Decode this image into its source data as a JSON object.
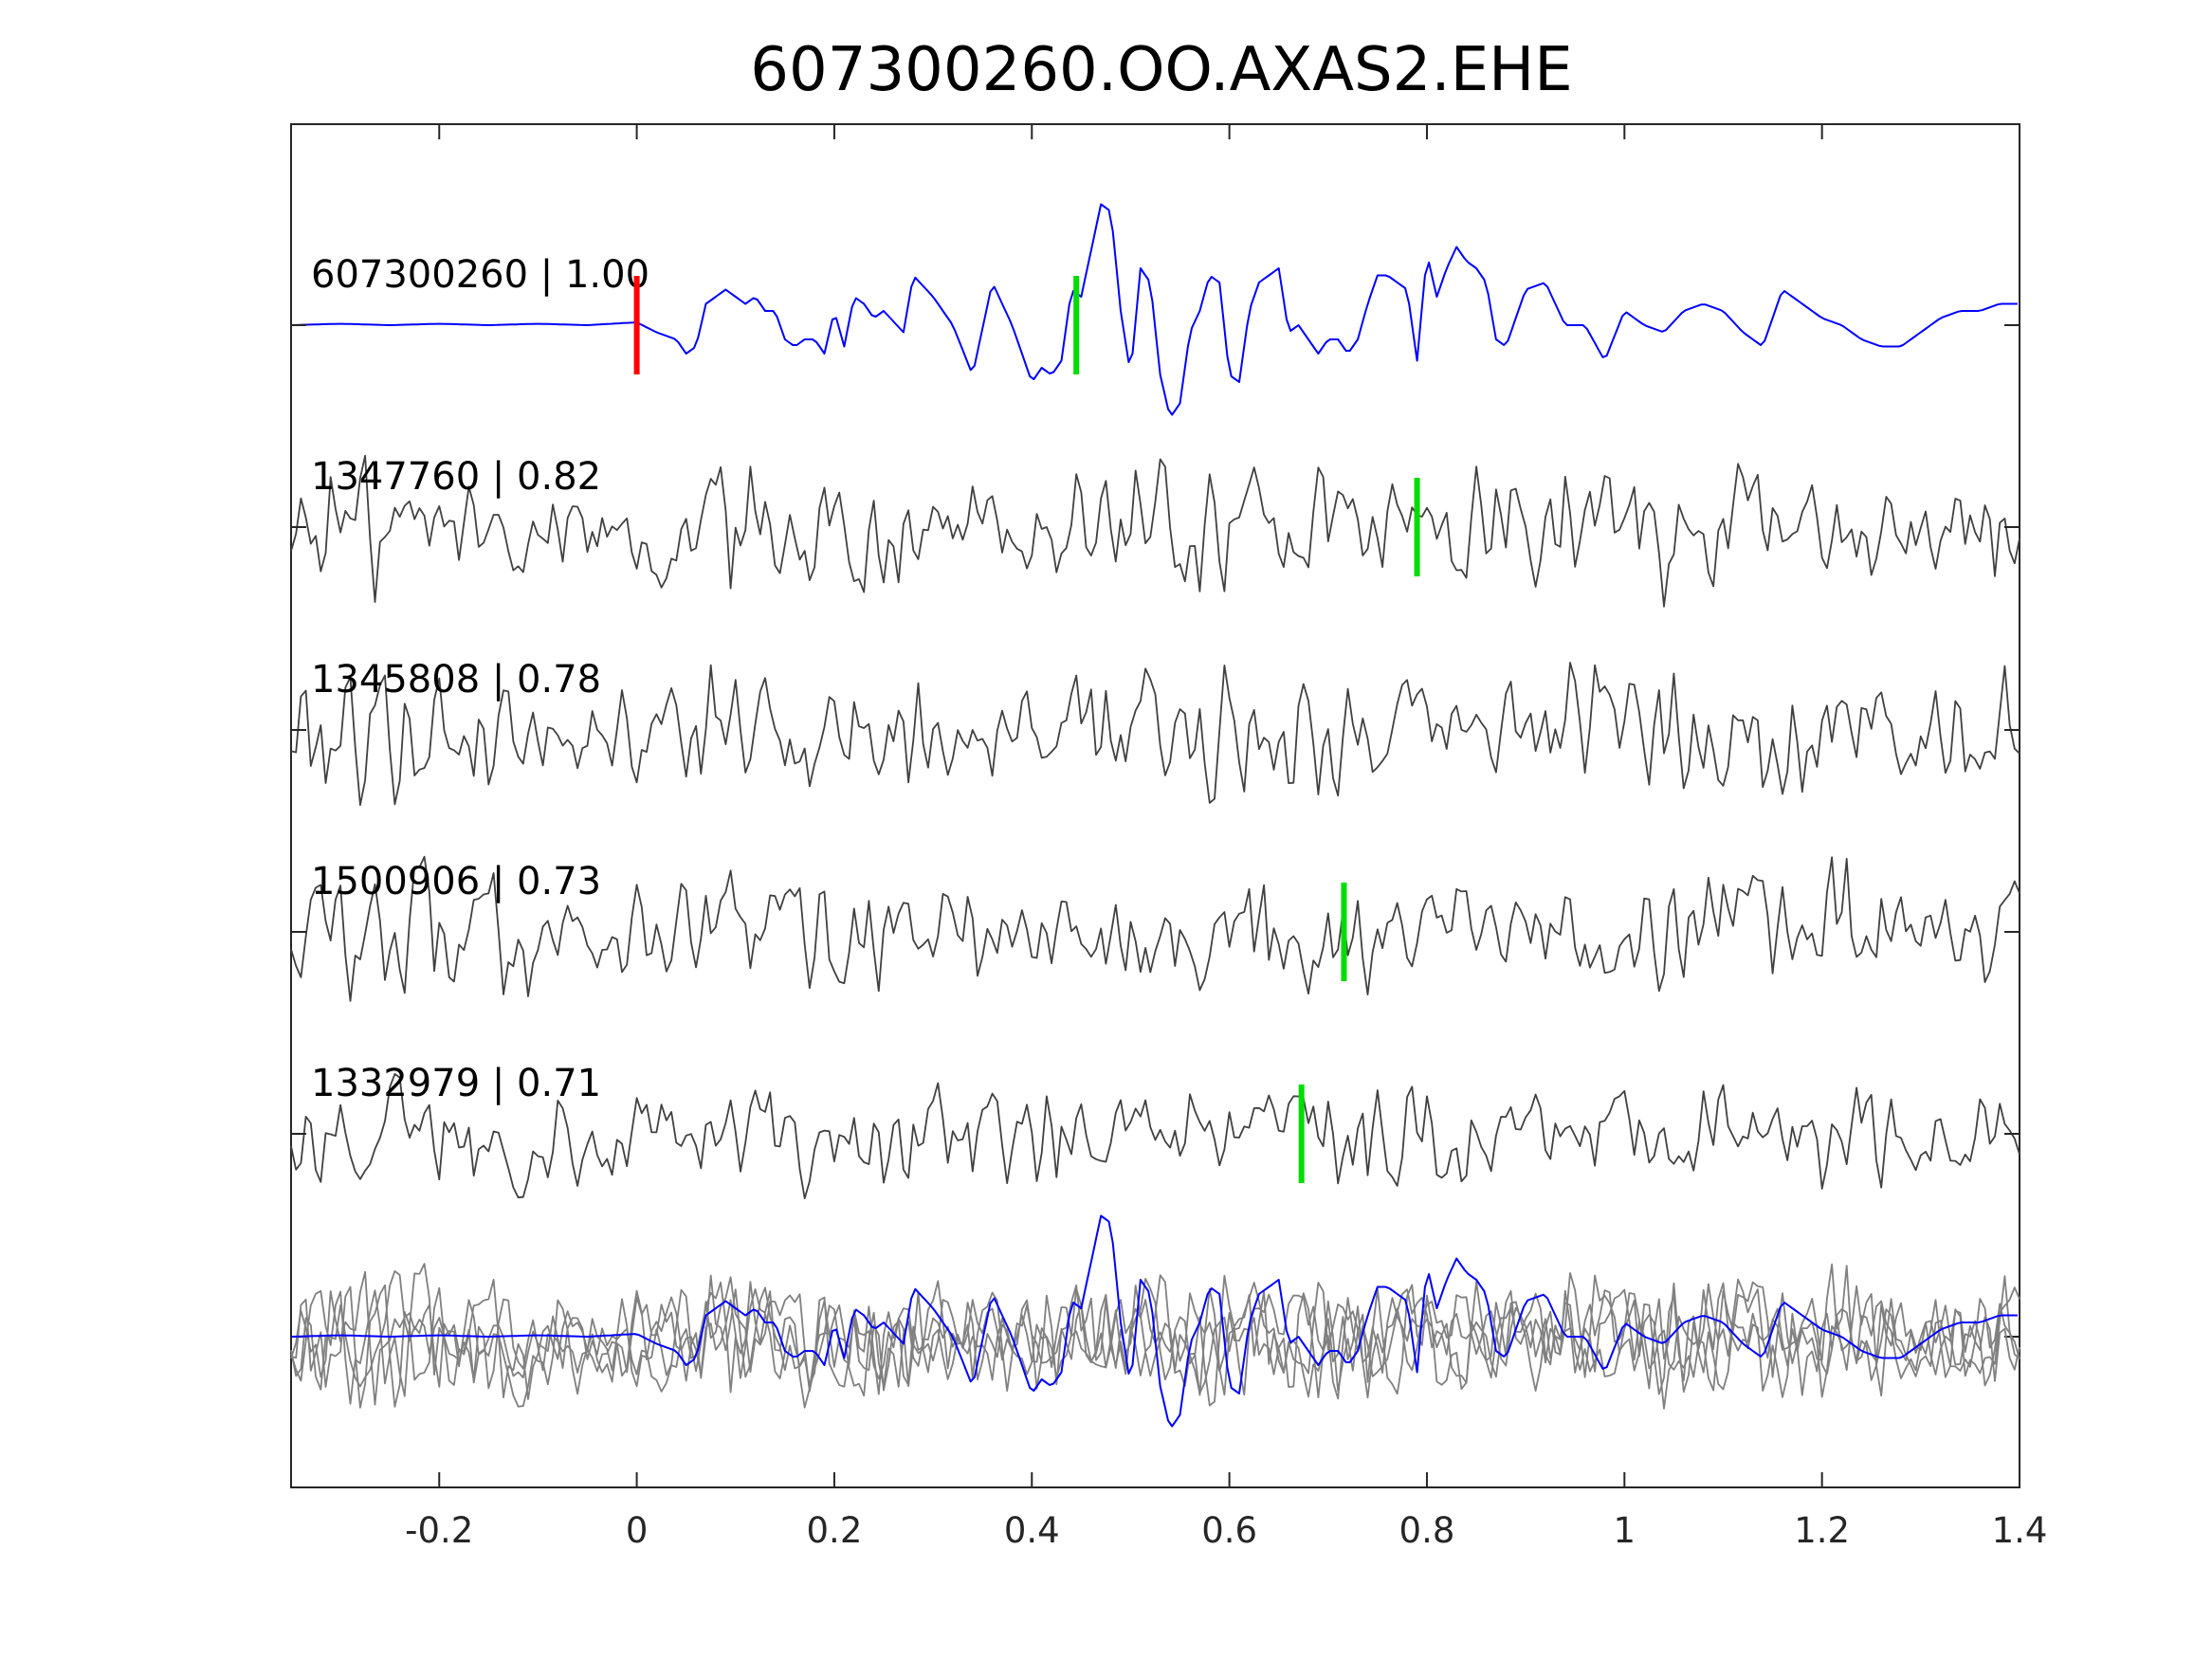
{
  "chart_data": {
    "type": "line",
    "title": "607300260.OO.AXAS2.EHE",
    "xlabel": "",
    "ylabel": "",
    "xlim": [
      -0.35,
      1.4
    ],
    "xticks": [
      -0.2,
      0,
      0.2,
      0.4,
      0.6,
      0.8,
      1,
      1.2,
      1.4
    ],
    "xtick_labels": [
      "-0.2",
      "0",
      "0.2",
      "0.4",
      "0.6",
      "0.8",
      "1",
      "1.2",
      "1.4"
    ],
    "grid": false,
    "colors": {
      "template": "#0000ff",
      "matches": "#404040",
      "overlay": "#808080",
      "p_pick": "#ff0000",
      "s_pick": "#00dd00",
      "axes": "#262626"
    },
    "traces": [
      {
        "name": "607300260",
        "score": "1.00",
        "label": "607300260 | 1.00",
        "role": "template",
        "p_pick": 0.0,
        "s_pick": 0.445
      },
      {
        "name": "1347760",
        "score": "0.82",
        "label": "1347760 | 0.82",
        "role": "match",
        "s_pick": 0.79
      },
      {
        "name": "1345808",
        "score": "0.78",
        "label": "1345808 | 0.78",
        "role": "match"
      },
      {
        "name": "1500906",
        "score": "0.73",
        "label": "1500906 | 0.73",
        "role": "match",
        "s_pick": 0.716
      },
      {
        "name": "1332979",
        "score": "0.71",
        "label": "1332979 | 0.71",
        "role": "match",
        "s_pick": 0.673
      }
    ],
    "template_waveform": {
      "t": [
        -0.35,
        -0.3,
        -0.25,
        -0.2,
        -0.15,
        -0.1,
        -0.05,
        0,
        0.02,
        0.04,
        0.05,
        0.06,
        0.07,
        0.08,
        0.09,
        0.1,
        0.11,
        0.12,
        0.13,
        0.14,
        0.15,
        0.16,
        0.17,
        0.18,
        0.19,
        0.2,
        0.21,
        0.22,
        0.23,
        0.24,
        0.25,
        0.27,
        0.28,
        0.3,
        0.32,
        0.34,
        0.36,
        0.38,
        0.4,
        0.41,
        0.42,
        0.43,
        0.44,
        0.45,
        0.47,
        0.48,
        0.49,
        0.5,
        0.51,
        0.52,
        0.53,
        0.54,
        0.55,
        0.56,
        0.57,
        0.58,
        0.59,
        0.6,
        0.61,
        0.62,
        0.63,
        0.64,
        0.65,
        0.66,
        0.67,
        0.68,
        0.69,
        0.7,
        0.71,
        0.72,
        0.73,
        0.74,
        0.75,
        0.76,
        0.77,
        0.78,
        0.79,
        0.8,
        0.81,
        0.82,
        0.83,
        0.84,
        0.85,
        0.86,
        0.87,
        0.88,
        0.9,
        0.92,
        0.94,
        0.96,
        0.98,
        1.0,
        1.02,
        1.04,
        1.06,
        1.08,
        1.1,
        1.12,
        1.14,
        1.16,
        1.18,
        1.2,
        1.22,
        1.24,
        1.26,
        1.28,
        1.3,
        1.32,
        1.34,
        1.36,
        1.38,
        1.4
      ],
      "amp": [
        0.0,
        0.01,
        0.0,
        0.01,
        0.0,
        0.01,
        0.0,
        0.02,
        -0.05,
        -0.1,
        -0.2,
        -0.15,
        0.15,
        0.2,
        0.25,
        0.2,
        0.15,
        0.2,
        0.1,
        0.1,
        -0.1,
        -0.15,
        -0.1,
        -0.1,
        -0.2,
        0.1,
        -0.15,
        0.2,
        0.15,
        0.05,
        0.1,
        -0.05,
        0.35,
        0.2,
        0.0,
        -0.35,
        0.3,
        0.0,
        -0.4,
        -0.3,
        -0.35,
        -0.25,
        0.25,
        0.2,
        0.85,
        0.8,
        0.1,
        -0.35,
        0.4,
        0.3,
        -0.35,
        -0.65,
        -0.55,
        -0.05,
        0.1,
        0.35,
        0.3,
        -0.35,
        -0.4,
        0.1,
        0.3,
        0.35,
        0.4,
        -0.05,
        0.0,
        -0.1,
        -0.2,
        -0.1,
        -0.1,
        -0.2,
        -0.1,
        0.15,
        0.35,
        0.35,
        0.3,
        0.25,
        -0.25,
        0.5,
        0.2,
        0.4,
        0.55,
        0.45,
        0.4,
        0.3,
        -0.1,
        -0.15,
        0.25,
        0.3,
        0.0,
        0.0,
        -0.25,
        0.1,
        0.0,
        -0.05,
        0.1,
        0.15,
        0.1,
        -0.05,
        -0.15,
        0.25,
        0.15,
        0.05,
        0.0,
        -0.1,
        -0.15,
        -0.15,
        -0.05,
        0.05,
        0.1,
        0.1,
        0.15,
        0.15
      ]
    }
  }
}
